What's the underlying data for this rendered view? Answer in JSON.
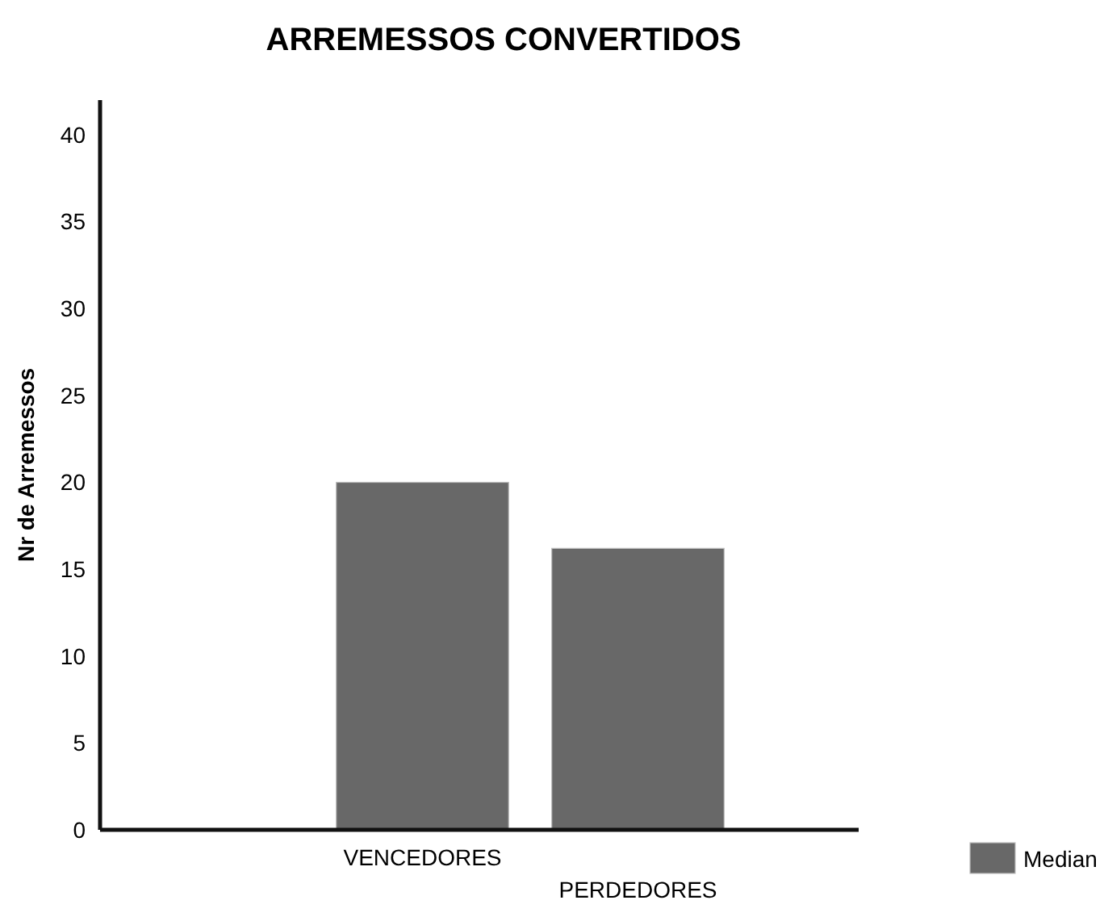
{
  "chart_data": {
    "type": "bar",
    "title": "ARREMESSOS CONVERTIDOS",
    "ylabel": "Nr de Arremessos",
    "categories": [
      "VENCEDORES",
      "PERDEDORES"
    ],
    "series": [
      {
        "name": "Median",
        "color": "#686868",
        "values": [
          20,
          16.2
        ]
      }
    ],
    "ylim": [
      0,
      42
    ],
    "yticks": [
      0,
      5,
      10,
      15,
      20,
      25,
      30,
      35,
      40
    ],
    "legend": "bottom right",
    "grid": false
  }
}
